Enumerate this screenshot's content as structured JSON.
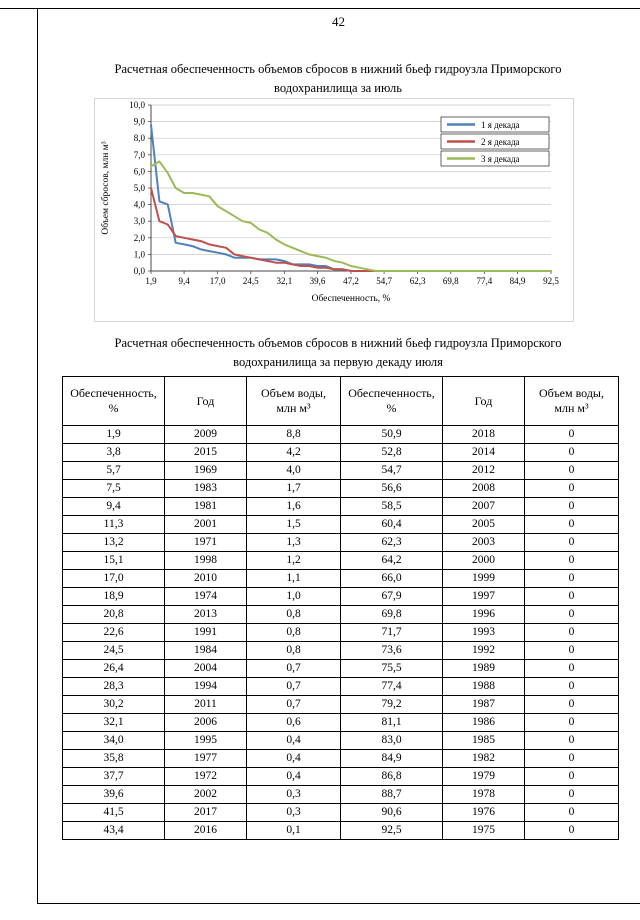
{
  "page": {
    "number": "42"
  },
  "chart": {
    "title_line1": "Расчетная обеспеченность объемов сбросов в нижний бьеф гидроузла Приморского",
    "title_line2": "водохранилища за июль"
  },
  "table_section": {
    "title_line1": "Расчетная обеспеченность объемов сбросов в нижний бьеф гидроузла Приморского",
    "title_line2": "водохранилища за первую декаду июля"
  },
  "chart_data": {
    "type": "line",
    "title": "Расчетная обеспеченность объемов сбросов в нижний бьеф гидроузла Приморского водохранилища за июль",
    "xlabel": "Обеспеченность, %",
    "ylabel": "Объем сбросов, млн м³",
    "ylim": [
      0,
      10
    ],
    "grid": "horizontal",
    "legend_position": "top-right",
    "ytick_labels": [
      "0,0",
      "1,0",
      "2,0",
      "3,0",
      "4,0",
      "5,0",
      "6,0",
      "7,0",
      "8,0",
      "9,0",
      "10,0"
    ],
    "xticks": [
      1.9,
      9.4,
      17.0,
      24.5,
      32.1,
      39.6,
      47.2,
      54.7,
      62.3,
      69.8,
      77.4,
      84.9,
      92.5
    ],
    "xtick_labels": [
      "1,9",
      "9,4",
      "17,0",
      "24,5",
      "32,1",
      "39,6",
      "47,2",
      "54,7",
      "62,3",
      "69,8",
      "77,4",
      "84,9",
      "92,5"
    ],
    "x": [
      1.9,
      3.8,
      5.7,
      7.5,
      9.4,
      11.3,
      13.2,
      15.1,
      17.0,
      18.9,
      20.8,
      22.6,
      24.5,
      26.4,
      28.3,
      30.2,
      32.1,
      34.0,
      35.8,
      37.7,
      39.6,
      41.5,
      43.4,
      45.3,
      47.2,
      49.1,
      50.9,
      52.8,
      54.7,
      56.6,
      58.5,
      60.4,
      62.3,
      64.2,
      66.0,
      67.9,
      69.8,
      71.7,
      73.6,
      75.5,
      77.4,
      79.2,
      81.1,
      83.0,
      84.9,
      86.8,
      88.7,
      90.6,
      92.5
    ],
    "series": [
      {
        "name": "1 я декада",
        "color": "#4F81BD",
        "values": [
          8.8,
          4.2,
          4.0,
          1.7,
          1.6,
          1.5,
          1.3,
          1.2,
          1.1,
          1.0,
          0.8,
          0.8,
          0.8,
          0.7,
          0.7,
          0.7,
          0.6,
          0.4,
          0.4,
          0.4,
          0.3,
          0.3,
          0.1,
          0.1,
          0,
          0,
          0,
          0,
          0,
          0,
          0,
          0,
          0,
          0,
          0,
          0,
          0,
          0,
          0,
          0,
          0,
          0,
          0,
          0,
          0,
          0,
          0,
          0,
          0
        ]
      },
      {
        "name": "2 я декада",
        "color": "#C0504D",
        "values": [
          5.0,
          3.0,
          2.8,
          2.1,
          2.0,
          1.9,
          1.8,
          1.6,
          1.5,
          1.4,
          1.0,
          0.9,
          0.8,
          0.7,
          0.6,
          0.5,
          0.5,
          0.4,
          0.3,
          0.3,
          0.2,
          0.2,
          0.1,
          0.1,
          0,
          0,
          0,
          0,
          0,
          0,
          0,
          0,
          0,
          0,
          0,
          0,
          0,
          0,
          0,
          0,
          0,
          0,
          0,
          0,
          0,
          0,
          0,
          0,
          0
        ]
      },
      {
        "name": "3 я декада",
        "color": "#9BBB59",
        "values": [
          6.3,
          6.6,
          5.9,
          5.0,
          4.7,
          4.7,
          4.6,
          4.5,
          3.9,
          3.6,
          3.3,
          3.0,
          2.9,
          2.5,
          2.3,
          1.9,
          1.6,
          1.4,
          1.2,
          1.0,
          0.9,
          0.8,
          0.6,
          0.5,
          0.3,
          0.2,
          0.1,
          0,
          0,
          0,
          0,
          0,
          0,
          0,
          0,
          0,
          0,
          0,
          0,
          0,
          0,
          0,
          0,
          0,
          0,
          0,
          0,
          0,
          0
        ]
      }
    ]
  },
  "table": {
    "headers": [
      "Обеспеченность, %",
      "Год",
      "Объем воды, млн м³",
      "Обеспеченность, %",
      "Год",
      "Объем воды, млн м³"
    ],
    "rows": [
      [
        "1,9",
        "2009",
        "8,8",
        "50,9",
        "2018",
        "0"
      ],
      [
        "3,8",
        "2015",
        "4,2",
        "52,8",
        "2014",
        "0"
      ],
      [
        "5,7",
        "1969",
        "4,0",
        "54,7",
        "2012",
        "0"
      ],
      [
        "7,5",
        "1983",
        "1,7",
        "56,6",
        "2008",
        "0"
      ],
      [
        "9,4",
        "1981",
        "1,6",
        "58,5",
        "2007",
        "0"
      ],
      [
        "11,3",
        "2001",
        "1,5",
        "60,4",
        "2005",
        "0"
      ],
      [
        "13,2",
        "1971",
        "1,3",
        "62,3",
        "2003",
        "0"
      ],
      [
        "15,1",
        "1998",
        "1,2",
        "64,2",
        "2000",
        "0"
      ],
      [
        "17,0",
        "2010",
        "1,1",
        "66,0",
        "1999",
        "0"
      ],
      [
        "18,9",
        "1974",
        "1,0",
        "67,9",
        "1997",
        "0"
      ],
      [
        "20,8",
        "2013",
        "0,8",
        "69,8",
        "1996",
        "0"
      ],
      [
        "22,6",
        "1991",
        "0,8",
        "71,7",
        "1993",
        "0"
      ],
      [
        "24,5",
        "1984",
        "0,8",
        "73,6",
        "1992",
        "0"
      ],
      [
        "26,4",
        "2004",
        "0,7",
        "75,5",
        "1989",
        "0"
      ],
      [
        "28,3",
        "1994",
        "0,7",
        "77,4",
        "1988",
        "0"
      ],
      [
        "30,2",
        "2011",
        "0,7",
        "79,2",
        "1987",
        "0"
      ],
      [
        "32,1",
        "2006",
        "0,6",
        "81,1",
        "1986",
        "0"
      ],
      [
        "34,0",
        "1995",
        "0,4",
        "83,0",
        "1985",
        "0"
      ],
      [
        "35,8",
        "1977",
        "0,4",
        "84,9",
        "1982",
        "0"
      ],
      [
        "37,7",
        "1972",
        "0,4",
        "86,8",
        "1979",
        "0"
      ],
      [
        "39,6",
        "2002",
        "0,3",
        "88,7",
        "1978",
        "0"
      ],
      [
        "41,5",
        "2017",
        "0,3",
        "90,6",
        "1976",
        "0"
      ],
      [
        "43,4",
        "2016",
        "0,1",
        "92,5",
        "1975",
        "0"
      ]
    ]
  }
}
